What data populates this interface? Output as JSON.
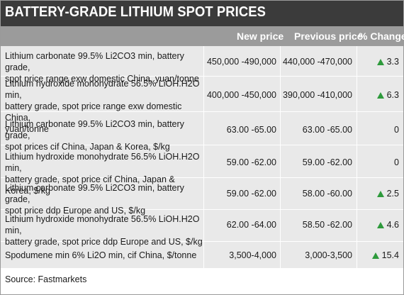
{
  "title": "BATTERY-GRADE LITHIUM SPOT PRICES",
  "columns": {
    "new_price": "New price",
    "previous_price": "Previous price",
    "pct_change": "% Change"
  },
  "rows": [
    {
      "line1": "Lithium carbonate 99.5% Li2CO3 min, battery grade,",
      "line2": "spot price range exw domestic China, yuan/tonne",
      "line3": "",
      "new_price": "450,000 -490,000",
      "previous_price": "440,000 -470,000",
      "change": "3.3",
      "up": true
    },
    {
      "line1": "Lithium hydroxide monohydrate 56.5% LiOH.H2O min,",
      "line2": "battery grade, spot price range exw domestic China,",
      "line3": "yuan/tonne",
      "new_price": "400,000 -450,000",
      "previous_price": "390,000 -410,000",
      "change": "6.3",
      "up": true
    },
    {
      "line1": "Lithium carbonate 99.5% Li2CO3 min, battery grade,",
      "line2": "spot prices cif China, Japan & Korea, $/kg",
      "line3": "",
      "new_price": "63.00 -65.00",
      "previous_price": "63.00 -65.00",
      "change": "0",
      "up": false
    },
    {
      "line1": "Lithium hydroxide monohydrate 56.5% LiOH.H2O min,",
      "line2": "battery grade, spot price cif China, Japan & Korea, $/kg",
      "line3": "",
      "new_price": "59.00 -62.00",
      "previous_price": "59.00 -62.00",
      "change": "0",
      "up": false
    },
    {
      "line1": "Lithium carbonate 99.5% Li2CO3 min, battery grade,",
      "line2": "spot price ddp Europe and US, $/kg",
      "line3": "",
      "new_price": "59.00 -62.00",
      "previous_price": "58.00 -60.00",
      "change": "2.5",
      "up": true
    },
    {
      "line1": "Lithium hydroxide monohydrate 56.5% LiOH.H2O min,",
      "line2": "battery grade, spot price ddp Europe and US, $/kg",
      "line3": "",
      "new_price": "62.00 -64.00",
      "previous_price": "58.50 -62.00",
      "change": "4.6",
      "up": true
    },
    {
      "line1": "Spodumene min 6% Li2O min, cif China, $/tonne",
      "line2": "",
      "line3": "",
      "new_price": "3,500-4,000",
      "previous_price": "3,000-3,500",
      "change": "15.4",
      "up": true
    }
  ],
  "source": "Source: Fastmarkets",
  "colors": {
    "title_bg": "#3b3b3b",
    "header_bg": "#9b9b9b",
    "table_bg": "#e9e9e9",
    "up_arrow": "#2e9a3c"
  }
}
